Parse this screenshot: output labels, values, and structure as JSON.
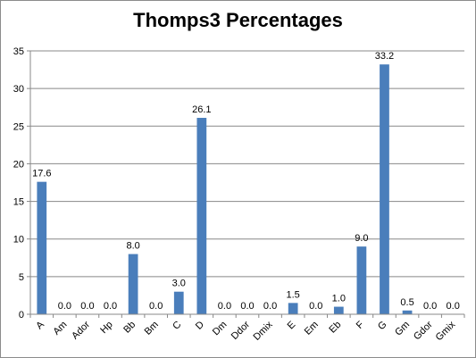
{
  "chart_data": {
    "type": "bar",
    "title": "Thomps3 Percentages",
    "categories": [
      "A",
      "Am",
      "Ador",
      "Hp",
      "Bb",
      "Bm",
      "C",
      "D",
      "Dm",
      "Ddor",
      "Dmix",
      "E",
      "Em",
      "Eb",
      "F",
      "G",
      "Gm",
      "Gdor",
      "Gmix"
    ],
    "values": [
      17.6,
      0.0,
      0.0,
      0.0,
      8.0,
      0.0,
      3.0,
      26.1,
      0.0,
      0.0,
      0.0,
      1.5,
      0.0,
      1.0,
      9.0,
      33.2,
      0.5,
      0.0,
      0.0
    ],
    "data_labels": [
      "17.6",
      "0.0",
      "0.0",
      "0.0",
      "8.0",
      "0.0",
      "3.0",
      "26.1",
      "0.0",
      "0.0",
      "0.0",
      "1.5",
      "0.0",
      "1.0",
      "9.0",
      "33.2",
      "0.5",
      "0.0",
      "0.0"
    ],
    "xlabel": "",
    "ylabel": "",
    "ylim": [
      0,
      35
    ],
    "yticks": [
      "0",
      "5",
      "10",
      "15",
      "20",
      "25",
      "30",
      "35"
    ],
    "grid": true,
    "legend": "none",
    "colors": {
      "bar": "#4a7ebb",
      "grid": "#888888",
      "axis": "#888888"
    }
  }
}
